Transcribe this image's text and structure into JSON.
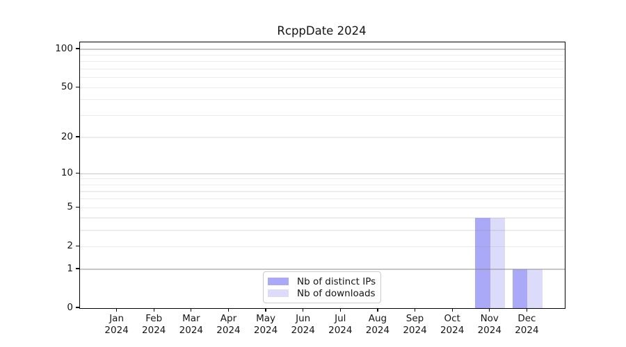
{
  "chart_data": {
    "type": "bar",
    "title": "RcppDate 2024",
    "categories": [
      "Jan 2024",
      "Feb 2024",
      "Mar 2024",
      "Apr 2024",
      "May 2024",
      "Jun 2024",
      "Jul 2024",
      "Aug 2024",
      "Sep 2024",
      "Oct 2024",
      "Nov 2024",
      "Dec 2024"
    ],
    "series": [
      {
        "name": "Nb of distinct IPs",
        "color": "#a9a9f7",
        "values": [
          0,
          0,
          0,
          0,
          0,
          0,
          0,
          0,
          0,
          0,
          4,
          1
        ]
      },
      {
        "name": "Nb of downloads",
        "color": "#dcdcfa",
        "values": [
          0,
          0,
          0,
          0,
          0,
          0,
          0,
          0,
          0,
          0,
          4,
          1
        ]
      }
    ],
    "xlabel": "",
    "ylabel": "",
    "yscale": "log1p",
    "ylim": [
      0,
      113
    ],
    "yticks": [
      0,
      1,
      2,
      5,
      10,
      20,
      50,
      100
    ],
    "major_gridlines": [
      1,
      10,
      100
    ],
    "minor_gridlines": [
      2,
      3,
      4,
      5,
      6,
      7,
      8,
      9,
      20,
      30,
      40,
      50,
      60,
      70,
      80,
      90
    ],
    "grid": true,
    "legend_position": "lower center",
    "colors": {
      "spine": "#000000",
      "text": "#151515",
      "major_grid": "rgba(128,128,128,0.45)",
      "minor_grid": "rgba(128,128,128,0.15)",
      "background": "#ffffff"
    }
  }
}
